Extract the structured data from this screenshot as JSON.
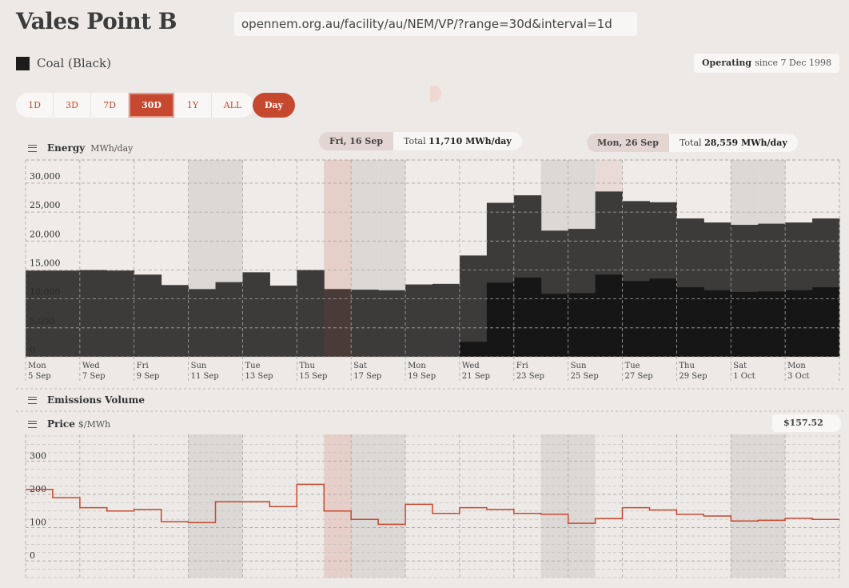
{
  "page": {
    "title": "Vales Point B",
    "url": "opennem.org.au/facility/au/NEM/VP/?range=30d&interval=1d",
    "legend": {
      "label": "Coal (Black)",
      "color": "#1c1c1c"
    },
    "status": {
      "state": "Operating",
      "since": "since 7 Dec 1998"
    }
  },
  "controls": {
    "ranges": [
      "1D",
      "3D",
      "7D",
      "30D",
      "1Y",
      "ALL"
    ],
    "active_range": "30D",
    "interval": "Day"
  },
  "tooltips": [
    {
      "date": "Fri, 16 Sep",
      "total_label": "Total",
      "total_value": "11,710 MWh/day"
    },
    {
      "date": "Mon, 26 Sep",
      "total_label": "Total",
      "total_value": "28,559 MWh/day"
    }
  ],
  "energy_chart": {
    "title": "Energy",
    "unit": "MWh/day",
    "y_ticks": [
      "30,000",
      "25,000",
      "20,000",
      "15,000",
      "10,000",
      "5,000",
      "0"
    ],
    "x_labels": [
      [
        "Mon",
        "5 Sep"
      ],
      [
        "Wed",
        "7 Sep"
      ],
      [
        "Fri",
        "9 Sep"
      ],
      [
        "Sun",
        "11 Sep"
      ],
      [
        "Tue",
        "13 Sep"
      ],
      [
        "Thu",
        "15 Sep"
      ],
      [
        "Sat",
        "17 Sep"
      ],
      [
        "Mon",
        "19 Sep"
      ],
      [
        "Wed",
        "21 Sep"
      ],
      [
        "Fri",
        "23 Sep"
      ],
      [
        "Sun",
        "25 Sep"
      ],
      [
        "Tue",
        "27 Sep"
      ],
      [
        "Thu",
        "29 Sep"
      ],
      [
        "Sat",
        "1 Oct"
      ],
      [
        "Mon",
        "3 Oct"
      ]
    ]
  },
  "emissions": {
    "title": "Emissions Volume"
  },
  "price_chart": {
    "title": "Price",
    "unit": "$/MWh",
    "current": "$157.52",
    "y_ticks": [
      "300",
      "200",
      "100",
      "0"
    ]
  },
  "chart_data": [
    {
      "type": "area",
      "title": "Energy",
      "ylabel": "MWh/day",
      "ylim": [
        0,
        34000
      ],
      "x": [
        "5 Sep",
        "6 Sep",
        "7 Sep",
        "8 Sep",
        "9 Sep",
        "10 Sep",
        "11 Sep",
        "12 Sep",
        "13 Sep",
        "14 Sep",
        "15 Sep",
        "16 Sep",
        "17 Sep",
        "18 Sep",
        "19 Sep",
        "20 Sep",
        "21 Sep",
        "22 Sep",
        "23 Sep",
        "24 Sep",
        "25 Sep",
        "26 Sep",
        "27 Sep",
        "28 Sep",
        "29 Sep",
        "30 Sep",
        "1 Oct",
        "2 Oct",
        "3 Oct",
        "4 Oct"
      ],
      "series": [
        {
          "name": "Coal (Black)",
          "values": [
            14900,
            14900,
            15000,
            14900,
            14200,
            12400,
            11700,
            12900,
            14600,
            12300,
            15000,
            11710,
            11600,
            11500,
            12500,
            12600,
            17500,
            26600,
            27900,
            21800,
            22100,
            28559,
            26900,
            26700,
            23900,
            23200,
            22800,
            23000,
            23200,
            23900
          ]
        }
      ],
      "highlight_index": 11
    },
    {
      "type": "line",
      "title": "Price",
      "ylabel": "$/MWh",
      "ylim": [
        -50,
        380
      ],
      "x": [
        "5 Sep",
        "6 Sep",
        "7 Sep",
        "8 Sep",
        "9 Sep",
        "10 Sep",
        "11 Sep",
        "12 Sep",
        "13 Sep",
        "14 Sep",
        "15 Sep",
        "16 Sep",
        "17 Sep",
        "18 Sep",
        "19 Sep",
        "20 Sep",
        "21 Sep",
        "22 Sep",
        "23 Sep",
        "24 Sep",
        "25 Sep",
        "26 Sep",
        "27 Sep",
        "28 Sep",
        "29 Sep",
        "30 Sep",
        "1 Oct",
        "2 Oct",
        "3 Oct",
        "4 Oct"
      ],
      "series": [
        {
          "name": "Price",
          "values": [
            215,
            190,
            160,
            150,
            155,
            118,
            115,
            178,
            178,
            163,
            230,
            150,
            125,
            110,
            170,
            143,
            160,
            155,
            143,
            140,
            113,
            127,
            160,
            153,
            140,
            135,
            120,
            122,
            128,
            125
          ]
        }
      ]
    }
  ]
}
